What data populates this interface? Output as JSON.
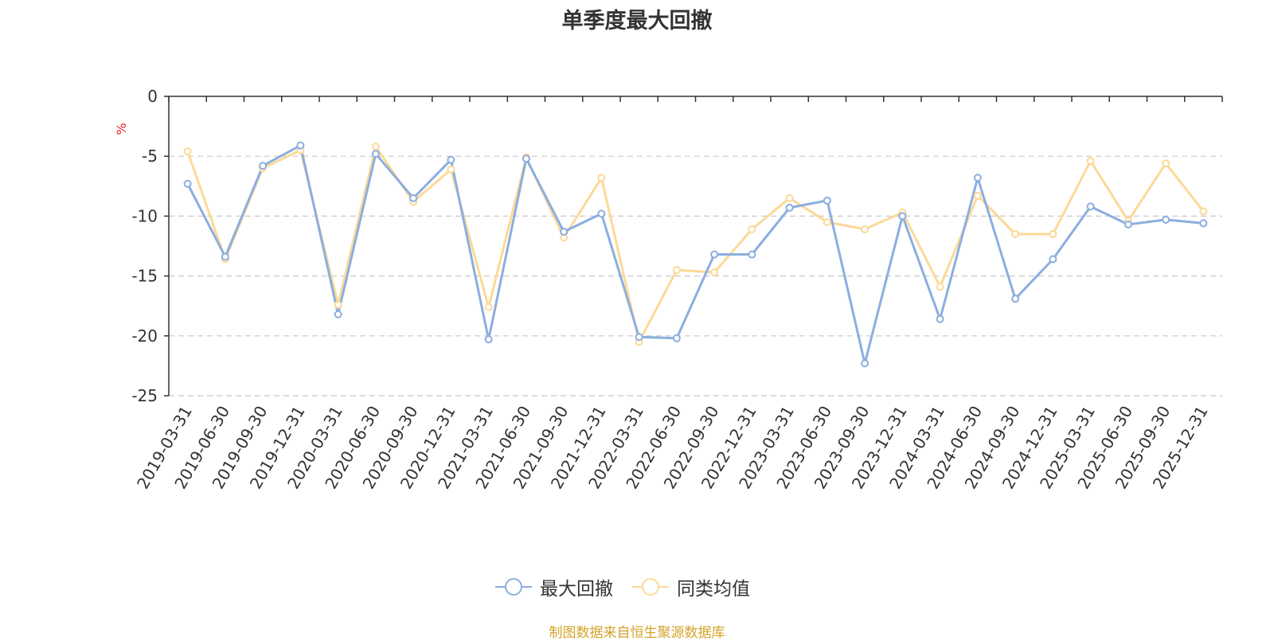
{
  "chart_data": {
    "type": "line",
    "title": "单季度最大回撤",
    "ylabel": "%",
    "xlabel": "",
    "ylim": [
      -25,
      0
    ],
    "yticks": [
      0,
      -5,
      -10,
      -15,
      -20,
      -25
    ],
    "grid": true,
    "legend_position": "bottom",
    "categories": [
      "2019-03-31",
      "2019-06-30",
      "2019-09-30",
      "2019-12-31",
      "2020-03-31",
      "2020-06-30",
      "2020-09-30",
      "2020-12-31",
      "2021-03-31",
      "2021-06-30",
      "2021-09-30",
      "2021-12-31",
      "2022-03-31",
      "2022-06-30",
      "2022-09-30",
      "2022-12-31",
      "2023-03-31",
      "2023-06-30",
      "2023-09-30",
      "2023-12-31",
      "2024-03-31",
      "2024-06-30",
      "2024-09-30",
      "2024-12-31",
      "2025-03-31",
      "2025-06-30",
      "2025-09-30",
      "2025-12-31"
    ],
    "series": [
      {
        "name": "最大回撤",
        "color": "#8caee0",
        "values": [
          -7.3,
          -13.4,
          -5.8,
          -4.1,
          -18.2,
          -4.8,
          -8.5,
          -5.3,
          -20.3,
          -5.2,
          -11.3,
          -9.8,
          -20.1,
          -20.2,
          -13.2,
          -13.2,
          -9.3,
          -8.7,
          -22.3,
          -10.0,
          -18.6,
          -6.8,
          -16.9,
          -13.6,
          -9.2,
          -10.7,
          -10.3,
          -10.6
        ]
      },
      {
        "name": "同类均值",
        "color": "#fcd997",
        "values": [
          -4.6,
          -13.6,
          -6.0,
          -4.5,
          -17.4,
          -4.2,
          -8.8,
          -6.1,
          -17.6,
          -5.1,
          -11.8,
          -6.8,
          -20.5,
          -14.5,
          -14.7,
          -11.1,
          -8.5,
          -10.5,
          -11.1,
          -9.7,
          -15.9,
          -8.3,
          -11.5,
          -11.5,
          -5.4,
          -10.4,
          -5.6,
          -9.6
        ]
      }
    ],
    "source_note": "制图数据来自恒生聚源数据库"
  }
}
